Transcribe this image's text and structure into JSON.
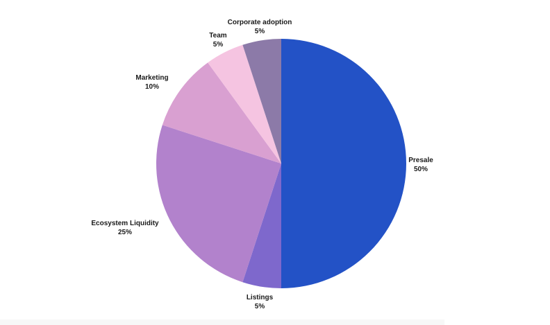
{
  "chart_data": {
    "type": "pie",
    "title": "",
    "start_angle_deg": 0,
    "direction": "clockwise",
    "slices": [
      {
        "label": "Presale",
        "value": 50,
        "value_label": "50%",
        "color": "#2352c6"
      },
      {
        "label": "Listings",
        "value": 5,
        "value_label": "5%",
        "color": "#7e68cc"
      },
      {
        "label": "Ecosystem Liquidity",
        "value": 25,
        "value_label": "25%",
        "color": "#b282cc"
      },
      {
        "label": "Marketing",
        "value": 10,
        "value_label": "10%",
        "color": "#d9a0d1"
      },
      {
        "label": "Team",
        "value": 5,
        "value_label": "5%",
        "color": "#f5c4e1"
      },
      {
        "label": "Corporate adoption",
        "value": 5,
        "value_label": "5%",
        "color": "#8c7aa8"
      }
    ],
    "legend": "none"
  }
}
